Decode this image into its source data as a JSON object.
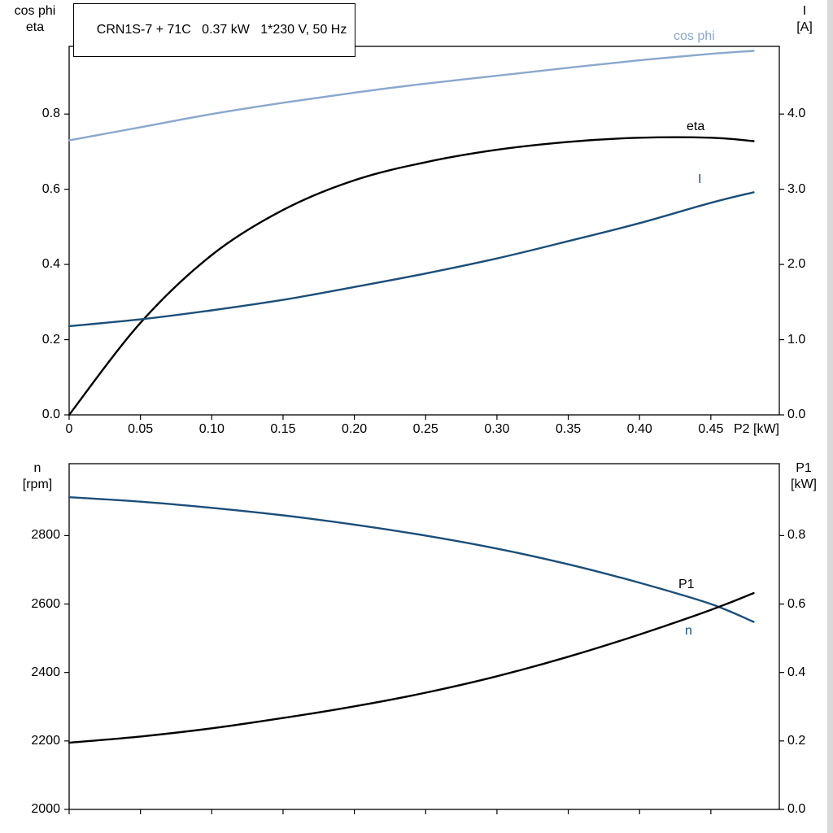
{
  "colors": {
    "light_blue": "#8aa8cc",
    "dark_blue": "#1b4e79",
    "black": "#000000",
    "frame": "#000000",
    "background": "#ffffff",
    "window_edge": "#d9d9d9"
  },
  "chart_data": [
    {
      "type": "line",
      "name": "motor-performance-top",
      "title": "CRN1S-7 + 71C   0.37 kW   1*230 V, 50 Hz",
      "legend_position": "curve-end-labels",
      "grid": false,
      "x_axis": {
        "label": "P2 [kW]",
        "lim": [
          0,
          0.498
        ],
        "show_tick_labels": true,
        "ticks": [
          {
            "v": 0,
            "label": "0"
          },
          {
            "v": 0.05,
            "label": "0.05"
          },
          {
            "v": 0.1,
            "label": "0.10"
          },
          {
            "v": 0.15,
            "label": "0.15"
          },
          {
            "v": 0.2,
            "label": "0.20"
          },
          {
            "v": 0.25,
            "label": "0.25"
          },
          {
            "v": 0.3,
            "label": "0.30"
          },
          {
            "v": 0.35,
            "label": "0.35"
          },
          {
            "v": 0.4,
            "label": "0.40"
          },
          {
            "v": 0.45,
            "label": "0.45"
          }
        ]
      },
      "left_axis": {
        "label_lines": [
          "cos phi",
          "eta"
        ],
        "lim": [
          0,
          0.98
        ],
        "ticks": [
          {
            "v": 0.0,
            "label": "0.0"
          },
          {
            "v": 0.2,
            "label": "0.2"
          },
          {
            "v": 0.4,
            "label": "0.4"
          },
          {
            "v": 0.6,
            "label": "0.6"
          },
          {
            "v": 0.8,
            "label": "0.8"
          }
        ]
      },
      "right_axis": {
        "label_lines": [
          "I",
          "[A]"
        ],
        "lim": [
          0,
          4.9
        ],
        "ticks": [
          {
            "v": 0.0,
            "label": "0.0"
          },
          {
            "v": 1.0,
            "label": "1.0"
          },
          {
            "v": 2.0,
            "label": "2.0"
          },
          {
            "v": 3.0,
            "label": "3.0"
          },
          {
            "v": 4.0,
            "label": "4.0"
          }
        ]
      },
      "x": [
        0,
        0.05,
        0.1,
        0.15,
        0.2,
        0.25,
        0.3,
        0.35,
        0.4,
        0.45,
        0.48
      ],
      "series": [
        {
          "name": "cos phi",
          "axis": "left",
          "color_key": "light_blue",
          "values": [
            0.73,
            0.765,
            0.8,
            0.83,
            0.857,
            0.881,
            0.902,
            0.923,
            0.943,
            0.96,
            0.968
          ]
        },
        {
          "name": "eta",
          "axis": "left",
          "color_key": "black",
          "values": [
            0.0,
            0.245,
            0.425,
            0.545,
            0.624,
            0.672,
            0.705,
            0.726,
            0.737,
            0.737,
            0.728
          ]
        },
        {
          "name": "I",
          "axis": "right",
          "color_key": "dark_blue",
          "values": [
            1.18,
            1.27,
            1.39,
            1.53,
            1.7,
            1.88,
            2.08,
            2.31,
            2.55,
            2.82,
            2.96
          ]
        }
      ]
    },
    {
      "type": "line",
      "name": "motor-performance-bottom",
      "title": "",
      "legend_position": "curve-end-labels",
      "grid": false,
      "x_axis": {
        "label": "",
        "lim": [
          0,
          0.498
        ],
        "show_tick_labels": false,
        "ticks": [
          {
            "v": 0,
            "label": ""
          },
          {
            "v": 0.05,
            "label": ""
          },
          {
            "v": 0.1,
            "label": ""
          },
          {
            "v": 0.15,
            "label": ""
          },
          {
            "v": 0.2,
            "label": ""
          },
          {
            "v": 0.25,
            "label": ""
          },
          {
            "v": 0.3,
            "label": ""
          },
          {
            "v": 0.35,
            "label": ""
          },
          {
            "v": 0.4,
            "label": ""
          },
          {
            "v": 0.45,
            "label": ""
          }
        ]
      },
      "left_axis": {
        "label_lines": [
          "n",
          "[rpm]"
        ],
        "lim": [
          2000,
          3010
        ],
        "ticks": [
          {
            "v": 2000,
            "label": "2000"
          },
          {
            "v": 2200,
            "label": "2200"
          },
          {
            "v": 2400,
            "label": "2400"
          },
          {
            "v": 2600,
            "label": "2600"
          },
          {
            "v": 2800,
            "label": "2800"
          }
        ]
      },
      "right_axis": {
        "label_lines": [
          "P1",
          "[kW]"
        ],
        "lim": [
          0,
          1.01
        ],
        "ticks": [
          {
            "v": 0.0,
            "label": "0.0"
          },
          {
            "v": 0.2,
            "label": "0.2"
          },
          {
            "v": 0.4,
            "label": "0.4"
          },
          {
            "v": 0.6,
            "label": "0.6"
          },
          {
            "v": 0.8,
            "label": "0.8"
          }
        ]
      },
      "x": [
        0,
        0.05,
        0.1,
        0.15,
        0.2,
        0.25,
        0.3,
        0.35,
        0.4,
        0.45,
        0.48
      ],
      "series": [
        {
          "name": "n",
          "axis": "left",
          "color_key": "dark_blue",
          "values": [
            2912,
            2899,
            2881,
            2859,
            2832,
            2800,
            2762,
            2716,
            2662,
            2600,
            2548
          ]
        },
        {
          "name": "P1",
          "axis": "right",
          "color_key": "black",
          "values": [
            0.195,
            0.213,
            0.237,
            0.267,
            0.301,
            0.341,
            0.389,
            0.446,
            0.511,
            0.583,
            0.632
          ]
        }
      ]
    }
  ]
}
